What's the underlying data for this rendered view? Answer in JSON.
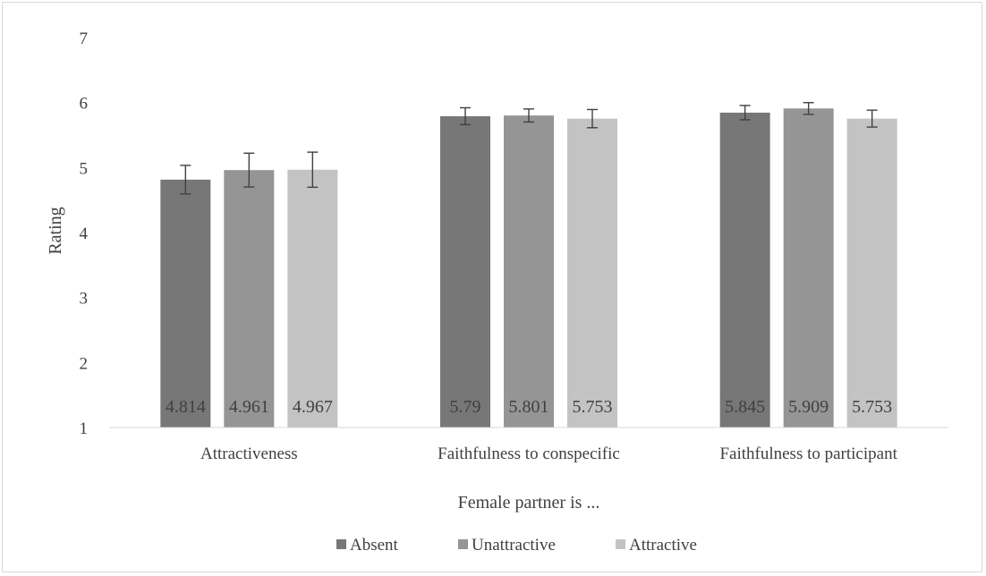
{
  "chart_data": {
    "type": "bar",
    "categories": [
      "Attractiveness",
      "Faithfulness to conspecific",
      "Faithfulness to participant"
    ],
    "series": [
      {
        "name": "Absent",
        "color": "#777777",
        "values": [
          4.814,
          5.79,
          5.845
        ],
        "error": [
          0.22,
          0.13,
          0.11
        ]
      },
      {
        "name": "Unattractive",
        "color": "#959595",
        "values": [
          4.961,
          5.801,
          5.909
        ],
        "error": [
          0.26,
          0.1,
          0.09
        ]
      },
      {
        "name": "Attractive",
        "color": "#c3c3c3",
        "values": [
          4.967,
          5.753,
          5.753
        ],
        "error": [
          0.27,
          0.14,
          0.13
        ]
      }
    ],
    "data_labels": [
      [
        "4.814",
        "5.79",
        "5.845"
      ],
      [
        "4.961",
        "5.801",
        "5.909"
      ],
      [
        "4.967",
        "5.753",
        "5.753"
      ]
    ],
    "ylim": [
      1,
      7
    ],
    "yticks": [
      1,
      2,
      3,
      4,
      5,
      6,
      7
    ],
    "ytick_labels": [
      "1",
      "2",
      "3",
      "4",
      "5",
      "6",
      "7"
    ],
    "xlabel": "Female partner is ...",
    "ylabel": "Rating",
    "legend_position": "bottom",
    "grid": false
  }
}
